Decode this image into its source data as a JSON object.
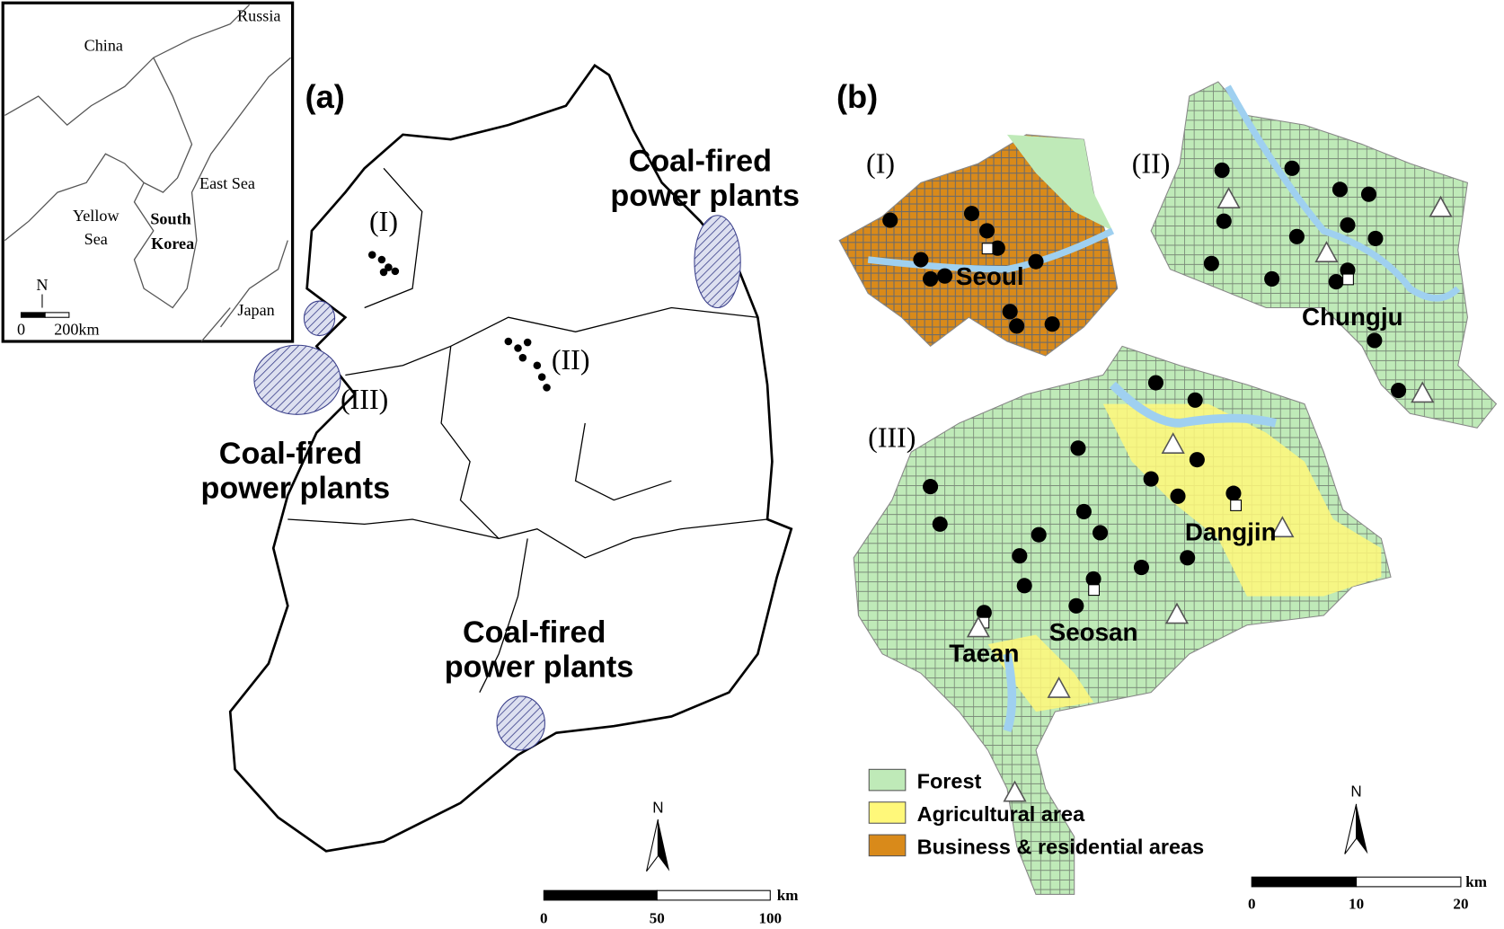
{
  "inset": {
    "russia": "Russia",
    "china": "China",
    "east_sea": "East Sea",
    "yellow_sea": "Yellow\nSea",
    "yellow": "Yellow",
    "sea": "Sea",
    "south": "South",
    "korea": "Korea",
    "japan": "Japan",
    "north": "N",
    "scale_zero": "0",
    "scale_end": "200km"
  },
  "panel_a": {
    "label": "(a)",
    "region_1": "(I)",
    "region_2": "(II)",
    "region_3": "(III)",
    "plants_east": [
      "Coal-fired",
      "power plants"
    ],
    "plants_west": [
      "Coal-fired",
      "power plants"
    ],
    "plants_south": [
      "Coal-fired",
      "power plants"
    ],
    "north": "N",
    "scale": [
      "0",
      "50",
      "100"
    ],
    "unit": "km"
  },
  "panel_b": {
    "label": "(b)",
    "region_1": "(I)",
    "region_2": "(II)",
    "region_3": "(III)",
    "cities": [
      "Seoul",
      "Chungju",
      "Taean",
      "Seosan",
      "Dangjin"
    ],
    "legend": [
      "Forest",
      "Agricultural area",
      "Business & residential areas"
    ],
    "north": "N",
    "scale": [
      "0",
      "10",
      "20"
    ],
    "unit": "km"
  }
}
